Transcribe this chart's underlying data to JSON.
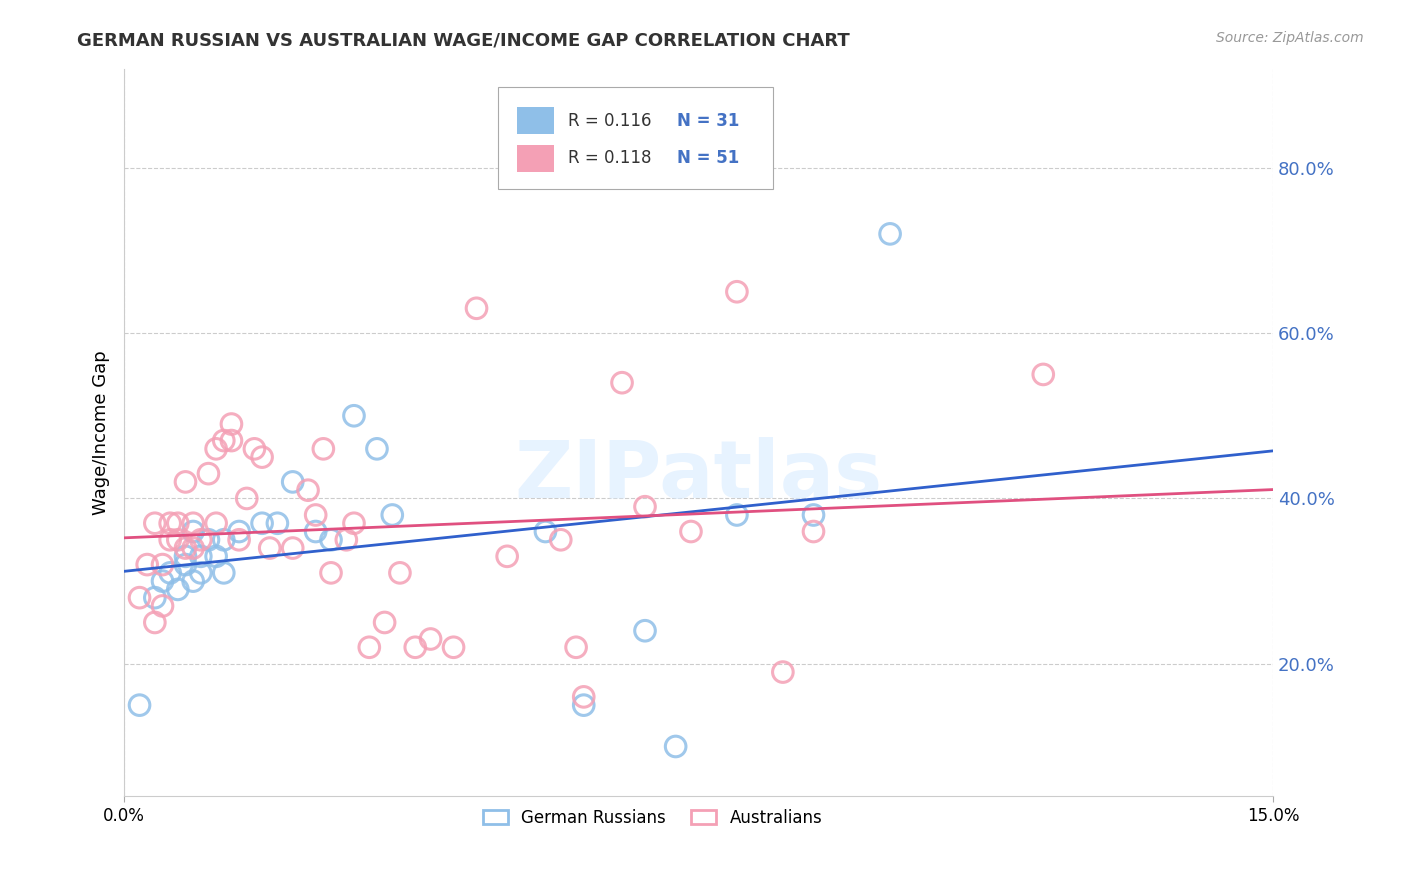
{
  "title": "GERMAN RUSSIAN VS AUSTRALIAN WAGE/INCOME GAP CORRELATION CHART",
  "source": "Source: ZipAtlas.com",
  "ylabel": "Wage/Income Gap",
  "ytick_labels": [
    "20.0%",
    "40.0%",
    "60.0%",
    "80.0%"
  ],
  "ytick_values": [
    0.2,
    0.4,
    0.6,
    0.8
  ],
  "xlim": [
    0.0,
    0.15
  ],
  "ylim": [
    0.04,
    0.92
  ],
  "watermark": "ZIPatlas",
  "legend_blue_r": "R = 0.116",
  "legend_blue_n": "N = 31",
  "legend_pink_r": "R = 0.118",
  "legend_pink_n": "N = 51",
  "blue_color": "#8FBFE8",
  "pink_color": "#F4A0B5",
  "blue_line_color": "#3060CC",
  "pink_line_color": "#E05080",
  "ytick_color": "#4472C4",
  "grid_color": "#CCCCCC",
  "title_color": "#333333",
  "german_russian_x": [
    0.002,
    0.004,
    0.005,
    0.006,
    0.007,
    0.008,
    0.008,
    0.009,
    0.009,
    0.01,
    0.01,
    0.011,
    0.012,
    0.013,
    0.013,
    0.015,
    0.018,
    0.02,
    0.022,
    0.025,
    0.027,
    0.03,
    0.033,
    0.035,
    0.055,
    0.06,
    0.068,
    0.072,
    0.08,
    0.09,
    0.1
  ],
  "german_russian_y": [
    0.15,
    0.28,
    0.3,
    0.31,
    0.29,
    0.33,
    0.32,
    0.36,
    0.3,
    0.33,
    0.31,
    0.35,
    0.33,
    0.35,
    0.31,
    0.36,
    0.37,
    0.37,
    0.42,
    0.36,
    0.35,
    0.5,
    0.46,
    0.38,
    0.36,
    0.15,
    0.24,
    0.1,
    0.38,
    0.38,
    0.72
  ],
  "australian_x": [
    0.002,
    0.003,
    0.004,
    0.004,
    0.005,
    0.005,
    0.006,
    0.006,
    0.007,
    0.007,
    0.008,
    0.008,
    0.009,
    0.009,
    0.01,
    0.011,
    0.012,
    0.012,
    0.013,
    0.014,
    0.014,
    0.015,
    0.016,
    0.017,
    0.018,
    0.019,
    0.022,
    0.024,
    0.025,
    0.026,
    0.027,
    0.029,
    0.03,
    0.032,
    0.034,
    0.036,
    0.038,
    0.04,
    0.043,
    0.046,
    0.05,
    0.057,
    0.059,
    0.06,
    0.065,
    0.068,
    0.074,
    0.08,
    0.086,
    0.09,
    0.12
  ],
  "australian_y": [
    0.28,
    0.32,
    0.37,
    0.25,
    0.32,
    0.27,
    0.37,
    0.35,
    0.35,
    0.37,
    0.34,
    0.42,
    0.34,
    0.37,
    0.35,
    0.43,
    0.37,
    0.46,
    0.47,
    0.47,
    0.49,
    0.35,
    0.4,
    0.46,
    0.45,
    0.34,
    0.34,
    0.41,
    0.38,
    0.46,
    0.31,
    0.35,
    0.37,
    0.22,
    0.25,
    0.31,
    0.22,
    0.23,
    0.22,
    0.63,
    0.33,
    0.35,
    0.22,
    0.16,
    0.54,
    0.39,
    0.36,
    0.65,
    0.19,
    0.36,
    0.55
  ]
}
